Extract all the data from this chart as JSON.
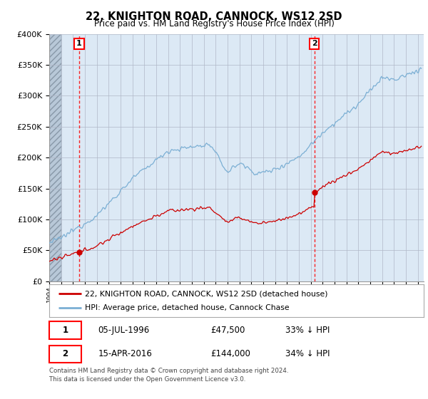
{
  "title": "22, KNIGHTON ROAD, CANNOCK, WS12 2SD",
  "subtitle": "Price paid vs. HM Land Registry's House Price Index (HPI)",
  "ylim": [
    0,
    400000
  ],
  "xlim_start": 1994.0,
  "xlim_end": 2025.5,
  "hpi_color": "#7bafd4",
  "price_color": "#cc0000",
  "dot1_x": 1996.52,
  "dot1_y": 47500,
  "dot2_x": 2016.29,
  "dot2_y": 144000,
  "annotation1_label": "1",
  "annotation2_label": "2",
  "legend_line1": "22, KNIGHTON ROAD, CANNOCK, WS12 2SD (detached house)",
  "legend_line2": "HPI: Average price, detached house, Cannock Chase",
  "table_row1": [
    "1",
    "05-JUL-1996",
    "£47,500",
    "33% ↓ HPI"
  ],
  "table_row2": [
    "2",
    "15-APR-2016",
    "£144,000",
    "34% ↓ HPI"
  ],
  "footnote": "Contains HM Land Registry data © Crown copyright and database right 2024.\nThis data is licensed under the Open Government Licence v3.0.",
  "plot_bg": "#dce9f5",
  "grid_color": "#b0b8c8"
}
